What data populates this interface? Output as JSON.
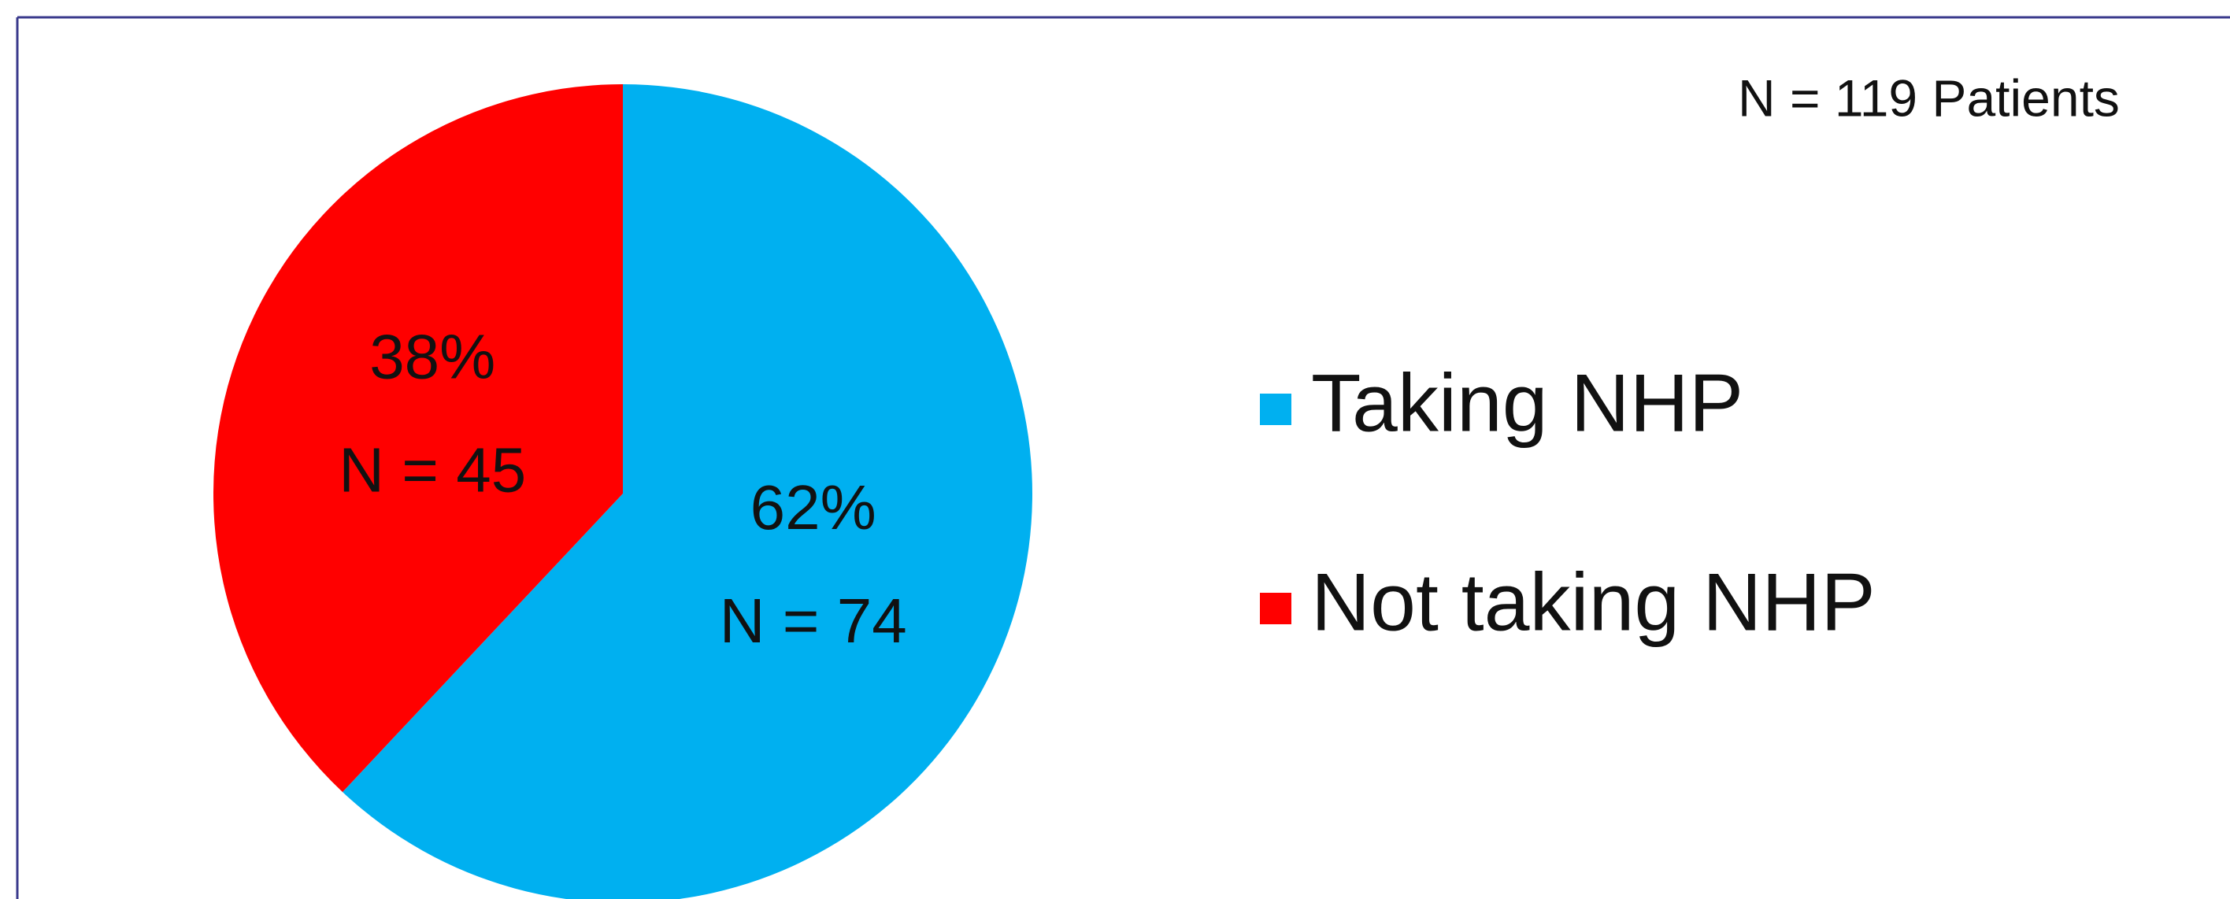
{
  "chart_data": {
    "type": "pie",
    "annotation": "N = 119 Patients",
    "categories": [
      "Taking NHP",
      "Not taking NHP"
    ],
    "values": [
      62,
      38
    ],
    "value_labels": [
      "62%",
      "38%"
    ],
    "slice_labels": [
      "N = 74",
      "N = 45"
    ],
    "colors": [
      "#00b0f0",
      "#ff0000"
    ],
    "legend": "right"
  }
}
